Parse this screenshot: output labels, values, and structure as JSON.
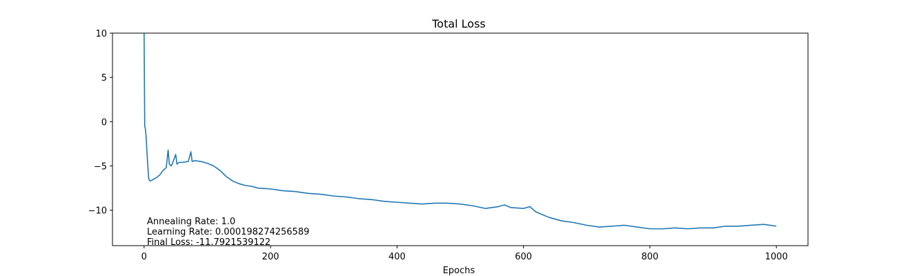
{
  "chart_data": {
    "type": "line",
    "title": "Total Loss",
    "xlabel": "Epochs",
    "ylabel": "",
    "xlim": [
      -50,
      1050
    ],
    "ylim": [
      -14,
      10
    ],
    "xticks": [
      0,
      200,
      400,
      600,
      800,
      1000
    ],
    "yticks": [
      -10,
      -5,
      0,
      5,
      10
    ],
    "xtick_labels": [
      "0",
      "200",
      "400",
      "600",
      "800",
      "1000"
    ],
    "ytick_labels": [
      "−10",
      "−5",
      "0",
      "5",
      "10"
    ],
    "grid": false,
    "annotations": [
      "Annealing Rate: 1.0",
      "Learning Rate: 0.000198274256589",
      "Final Loss: -11.7921539122"
    ],
    "series": [
      {
        "color": "#1f77b4",
        "x": [
          0,
          1,
          2,
          3,
          5,
          7,
          8,
          10,
          15,
          20,
          25,
          30,
          35,
          38,
          40,
          43,
          46,
          50,
          52,
          55,
          60,
          70,
          74,
          76,
          80,
          90,
          100,
          110,
          120,
          130,
          140,
          150,
          160,
          170,
          180,
          200,
          220,
          240,
          260,
          280,
          300,
          320,
          340,
          360,
          380,
          400,
          420,
          440,
          460,
          480,
          500,
          520,
          540,
          560,
          570,
          580,
          600,
          610,
          620,
          640,
          660,
          680,
          700,
          720,
          740,
          760,
          780,
          800,
          820,
          840,
          860,
          880,
          900,
          920,
          940,
          960,
          980,
          1000
        ],
        "y": [
          10,
          -0.5,
          -0.8,
          -1.5,
          -4,
          -6.2,
          -6.6,
          -6.7,
          -6.5,
          -6.3,
          -6.0,
          -5.5,
          -5.2,
          -3.2,
          -4.8,
          -5.0,
          -4.5,
          -3.7,
          -4.8,
          -4.6,
          -4.6,
          -4.5,
          -3.4,
          -4.5,
          -4.4,
          -4.5,
          -4.7,
          -5.0,
          -5.5,
          -6.2,
          -6.7,
          -7.0,
          -7.2,
          -7.3,
          -7.5,
          -7.6,
          -7.8,
          -7.9,
          -8.1,
          -8.2,
          -8.4,
          -8.5,
          -8.7,
          -8.8,
          -9.0,
          -9.1,
          -9.2,
          -9.3,
          -9.2,
          -9.2,
          -9.3,
          -9.5,
          -9.8,
          -9.6,
          -9.4,
          -9.7,
          -9.8,
          -9.6,
          -10.2,
          -10.8,
          -11.2,
          -11.4,
          -11.7,
          -11.9,
          -11.8,
          -11.7,
          -11.9,
          -12.1,
          -12.1,
          -12.0,
          -12.1,
          -12.0,
          -12.0,
          -11.8,
          -11.8,
          -11.7,
          -11.6,
          -11.8
        ]
      }
    ]
  }
}
